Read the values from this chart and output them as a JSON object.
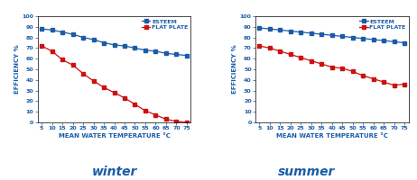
{
  "x": [
    5,
    10,
    15,
    20,
    25,
    30,
    35,
    40,
    45,
    50,
    55,
    60,
    65,
    70,
    75
  ],
  "winter_esteem": [
    88,
    87,
    85,
    83,
    80,
    78,
    75,
    73,
    72,
    70,
    68,
    67,
    65,
    64,
    63
  ],
  "winter_flat": [
    72,
    67,
    59,
    54,
    46,
    39,
    33,
    28,
    23,
    17,
    11,
    7,
    3,
    1,
    0
  ],
  "summer_esteem": [
    89,
    88,
    87,
    86,
    85,
    84,
    83,
    82,
    81,
    80,
    79,
    78,
    77,
    76,
    75
  ],
  "summer_flat": [
    72,
    70,
    67,
    64,
    61,
    58,
    55,
    52,
    51,
    48,
    44,
    41,
    38,
    35,
    36
  ],
  "xlim": [
    3,
    77
  ],
  "ylim": [
    0,
    100
  ],
  "xticks": [
    5,
    10,
    15,
    20,
    25,
    30,
    35,
    40,
    45,
    50,
    55,
    60,
    65,
    70,
    75
  ],
  "yticks": [
    0,
    10,
    20,
    30,
    40,
    50,
    60,
    70,
    80,
    90,
    100
  ],
  "xlabel": "MEAN WATER TEMPERATURE °C",
  "ylabel": "EFFICIENCY %",
  "esteem_color": "#1a5ca8",
  "flat_color": "#cc1111",
  "esteem_label": "ESTEEM",
  "flat_label": "FLAT PLATE",
  "winter_title": "winter",
  "summer_title": "summer",
  "title_color": "#1a5ca8",
  "title_fontsize": 10,
  "label_color": "#1a5ca8",
  "axis_label_fontsize": 5,
  "tick_fontsize": 4.5,
  "legend_fontsize": 4.5,
  "marker": "s",
  "marker_size": 2.5,
  "line_width": 0.9,
  "background_color": "#ffffff"
}
